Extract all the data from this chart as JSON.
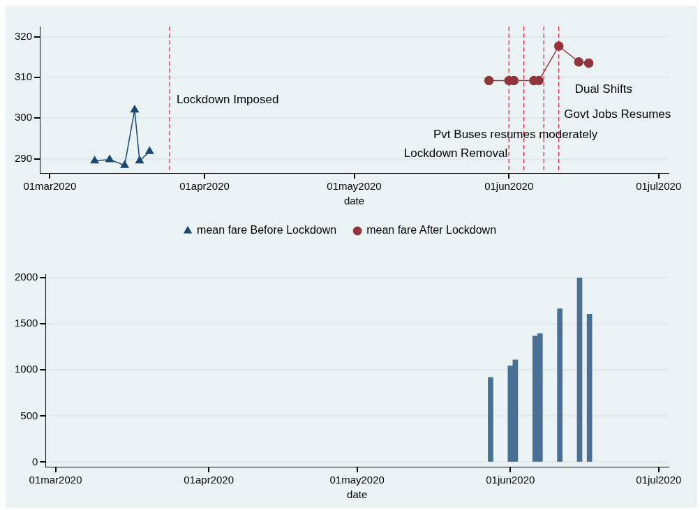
{
  "chart_data": [
    {
      "type": "line",
      "xlabel": "date",
      "legend": "bottom",
      "grid": "y",
      "xlim": [
        "2020-02-28",
        "2020-07-03"
      ],
      "ylim": [
        286.5,
        322.5
      ],
      "xticks": [
        {
          "value": "2020-03-01",
          "label": "01mar2020"
        },
        {
          "value": "2020-04-01",
          "label": "01apr2020"
        },
        {
          "value": "2020-05-01",
          "label": "01may2020"
        },
        {
          "value": "2020-06-01",
          "label": "01jun2020"
        },
        {
          "value": "2020-07-01",
          "label": "01jul2020"
        }
      ],
      "yticks": [
        290,
        300,
        310,
        320
      ],
      "series": [
        {
          "name": "mean fare Before Lockdown",
          "color": "#1a476f",
          "marker": "triangle",
          "x": [
            "2020-03-10",
            "2020-03-13",
            "2020-03-16",
            "2020-03-18",
            "2020-03-19",
            "2020-03-21"
          ],
          "values": [
            289.5,
            289.8,
            288.4,
            302,
            289.5,
            291.8
          ]
        },
        {
          "name": "mean fare After Lockdown",
          "color": "#90353b",
          "marker": "circle",
          "x": [
            "2020-05-28",
            "2020-06-01",
            "2020-06-02",
            "2020-06-06",
            "2020-06-07",
            "2020-06-11",
            "2020-06-15",
            "2020-06-17"
          ],
          "values": [
            309.2,
            309.2,
            309.2,
            309.2,
            309.2,
            317.7,
            313.8,
            313.5
          ]
        }
      ],
      "ref_lines": [
        {
          "axis": "x",
          "value": "2020-03-25",
          "label": "Lockdown Imposed",
          "color": "#dc143c",
          "line_style": "dashed"
        },
        {
          "axis": "x",
          "value": "2020-06-01",
          "label": "Lockdown Removal",
          "color": "#dc143c",
          "line_style": "dashed"
        },
        {
          "axis": "x",
          "value": "2020-06-04",
          "label": "Pvt Buses resumes moderately",
          "color": "#dc143c",
          "line_style": "dashed"
        },
        {
          "axis": "x",
          "value": "2020-06-08",
          "label": "Govt Jobs Resumes",
          "color": "#dc143c",
          "line_style": "dashed"
        },
        {
          "axis": "x",
          "value": "2020-06-11",
          "label": "Dual Shifts",
          "color": "#dc143c",
          "line_style": "dashed"
        }
      ]
    },
    {
      "type": "bar",
      "xlabel": "date",
      "grid": "y",
      "xlim": [
        "2020-02-28",
        "2020-07-03"
      ],
      "ylim": [
        -50,
        2040
      ],
      "xticks": [
        {
          "value": "2020-03-01",
          "label": "01mar2020"
        },
        {
          "value": "2020-04-01",
          "label": "01apr2020"
        },
        {
          "value": "2020-05-01",
          "label": "01may2020"
        },
        {
          "value": "2020-06-01",
          "label": "01jun2020"
        },
        {
          "value": "2020-07-01",
          "label": "01jul2020"
        }
      ],
      "yticks": [
        0,
        500,
        1000,
        1500,
        2000
      ],
      "series": [
        {
          "color": "#4a6f94",
          "x": [
            "2020-05-28",
            "2020-06-01",
            "2020-06-02",
            "2020-06-06",
            "2020-06-07",
            "2020-06-11",
            "2020-06-15",
            "2020-06-17"
          ],
          "values": [
            920,
            1045,
            1110,
            1370,
            1395,
            1665,
            2000,
            1605
          ]
        }
      ]
    }
  ]
}
